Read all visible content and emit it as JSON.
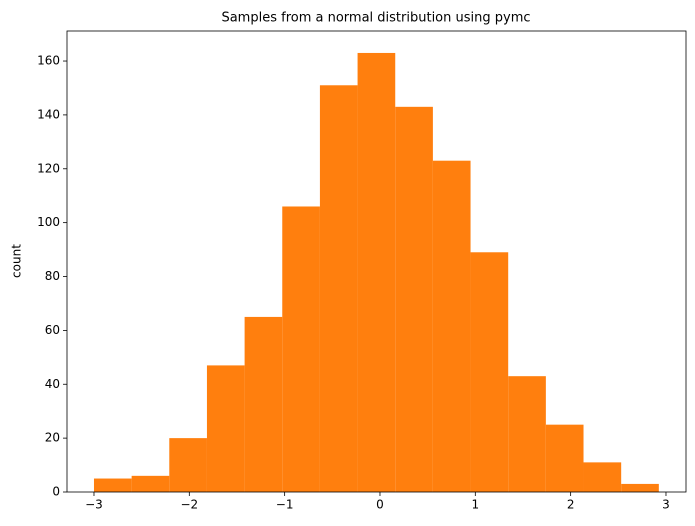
{
  "chart_data": {
    "type": "histogram",
    "title": "Samples from a normal distribution using pymc",
    "ylabel": "count",
    "bins": [
      -3.0,
      -2.605,
      -2.21,
      -1.815,
      -1.42,
      -1.025,
      -0.63,
      -0.235,
      0.16,
      0.555,
      0.95,
      1.345,
      1.74,
      2.135,
      2.53,
      2.925
    ],
    "counts": [
      5,
      6,
      20,
      47,
      65,
      106,
      151,
      163,
      143,
      123,
      89,
      43,
      25,
      11,
      3
    ],
    "color": "#ff7f0e",
    "xlim": [
      -3.283,
      3.21
    ],
    "ylim": [
      0,
      171.15
    ],
    "xticks": [
      {
        "value": -3,
        "label": "−3"
      },
      {
        "value": -2,
        "label": "−2"
      },
      {
        "value": -1,
        "label": "−1"
      },
      0,
      1,
      2,
      3
    ],
    "yticks": [
      0,
      20,
      40,
      60,
      80,
      100,
      120,
      140,
      160
    ],
    "grid": false
  }
}
